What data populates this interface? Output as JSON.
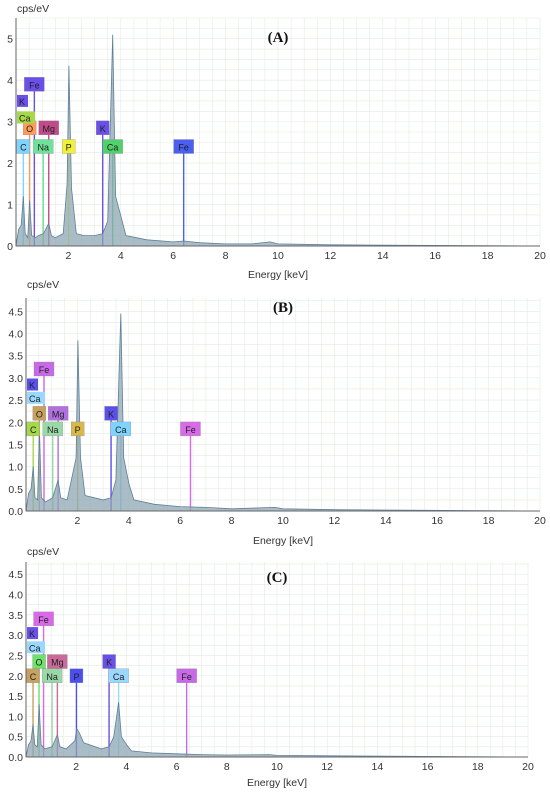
{
  "chart_data": [
    {
      "type": "area",
      "panel_label": "(A)",
      "ylabel": "cps/eV",
      "xlabel": "Energy [keV]",
      "xlim": [
        0,
        20
      ],
      "ylim": [
        0,
        5.5
      ],
      "x_ticks": [
        2,
        4,
        6,
        8,
        10,
        12,
        14,
        16,
        18,
        20
      ],
      "y_ticks": [
        0,
        1,
        2,
        3,
        4,
        5
      ],
      "grid": true,
      "spectrum": [
        [
          0,
          0
        ],
        [
          0.1,
          0.4
        ],
        [
          0.2,
          0.5
        ],
        [
          0.28,
          1.2
        ],
        [
          0.35,
          0.3
        ],
        [
          0.45,
          0.2
        ],
        [
          0.52,
          1.1
        ],
        [
          0.6,
          0.25
        ],
        [
          0.75,
          0.2
        ],
        [
          0.85,
          0.25
        ],
        [
          1.05,
          0.3
        ],
        [
          1.25,
          0.55
        ],
        [
          1.35,
          0.25
        ],
        [
          1.5,
          0.2
        ],
        [
          1.8,
          0.3
        ],
        [
          1.95,
          1.5
        ],
        [
          2.02,
          4.35
        ],
        [
          2.12,
          1.4
        ],
        [
          2.3,
          0.3
        ],
        [
          2.6,
          0.25
        ],
        [
          3.0,
          0.25
        ],
        [
          3.31,
          0.3
        ],
        [
          3.5,
          0.6
        ],
        [
          3.69,
          5.1
        ],
        [
          3.8,
          1.2
        ],
        [
          4.01,
          0.7
        ],
        [
          4.2,
          0.25
        ],
        [
          5,
          0.15
        ],
        [
          6,
          0.1
        ],
        [
          6.4,
          0.12
        ],
        [
          7,
          0.08
        ],
        [
          8,
          0.05
        ],
        [
          9,
          0.05
        ],
        [
          9.7,
          0.1
        ],
        [
          10,
          0.05
        ],
        [
          12,
          0.03
        ],
        [
          20,
          0
        ]
      ],
      "element_lines": [
        {
          "label": "C",
          "energy": 0.28,
          "height": 2.4,
          "color": "#7fd3ff"
        },
        {
          "label": "O",
          "energy": 0.52,
          "height": 2.85,
          "color": "#ff9a5a"
        },
        {
          "label": "Fe",
          "energy": 0.7,
          "height": 3.9,
          "color": "#6a4fe8"
        },
        {
          "label": "Na",
          "energy": 1.04,
          "height": 2.4,
          "color": "#6ee29a"
        },
        {
          "label": "Mg",
          "energy": 1.25,
          "height": 2.85,
          "color": "#c04a8a"
        },
        {
          "label": "P",
          "energy": 2.01,
          "height": 2.4,
          "color": "#f0f03a"
        },
        {
          "label": "K",
          "energy": 3.31,
          "height": 2.85,
          "color": "#6a4fe8"
        },
        {
          "label": "Ca",
          "energy": 3.69,
          "height": 2.4,
          "color": "#4fd26a"
        },
        {
          "label": "Fe",
          "energy": 6.4,
          "height": 2.4,
          "color": "#4a5ff0"
        }
      ],
      "side_labels": [
        {
          "label": "K",
          "y": 3.5,
          "color": "#6a4fe8"
        },
        {
          "label": "Ca",
          "y": 3.1,
          "color": "#a6d84a"
        }
      ]
    },
    {
      "type": "area",
      "panel_label": "(B)",
      "ylabel": "cps/eV",
      "xlabel": "Energy [keV]",
      "xlim": [
        0,
        20
      ],
      "ylim": [
        0,
        4.8
      ],
      "x_ticks": [
        2,
        4,
        6,
        8,
        10,
        12,
        14,
        16,
        18,
        20
      ],
      "y_ticks": [
        0.0,
        0.5,
        1.0,
        1.5,
        2.0,
        2.5,
        3.0,
        3.5,
        4.0,
        4.5
      ],
      "grid": true,
      "spectrum": [
        [
          0,
          0
        ],
        [
          0.1,
          0.4
        ],
        [
          0.2,
          0.5
        ],
        [
          0.28,
          1.0
        ],
        [
          0.35,
          0.3
        ],
        [
          0.45,
          0.25
        ],
        [
          0.52,
          1.85
        ],
        [
          0.6,
          0.3
        ],
        [
          0.75,
          0.2
        ],
        [
          1.04,
          0.3
        ],
        [
          1.25,
          0.7
        ],
        [
          1.35,
          0.3
        ],
        [
          1.6,
          0.25
        ],
        [
          1.95,
          1.2
        ],
        [
          2.02,
          3.85
        ],
        [
          2.12,
          1.2
        ],
        [
          2.3,
          0.35
        ],
        [
          3.0,
          0.25
        ],
        [
          3.31,
          0.3
        ],
        [
          3.5,
          0.7
        ],
        [
          3.69,
          4.45
        ],
        [
          3.8,
          1.2
        ],
        [
          4.01,
          0.6
        ],
        [
          4.2,
          0.25
        ],
        [
          5,
          0.15
        ],
        [
          6,
          0.1
        ],
        [
          7,
          0.08
        ],
        [
          8,
          0.05
        ],
        [
          9.7,
          0.08
        ],
        [
          10,
          0.05
        ],
        [
          12,
          0.03
        ],
        [
          20,
          0
        ]
      ],
      "element_lines": [
        {
          "label": "C",
          "energy": 0.28,
          "height": 1.85,
          "color": "#a6d84a"
        },
        {
          "label": "O",
          "energy": 0.52,
          "height": 2.2,
          "color": "#c8a060"
        },
        {
          "label": "Fe",
          "energy": 0.7,
          "height": 3.2,
          "color": "#c86ae8"
        },
        {
          "label": "Na",
          "energy": 1.04,
          "height": 1.85,
          "color": "#9ad8a8"
        },
        {
          "label": "Mg",
          "energy": 1.25,
          "height": 2.2,
          "color": "#b070e0"
        },
        {
          "label": "P",
          "energy": 2.01,
          "height": 1.85,
          "color": "#d8b84a"
        },
        {
          "label": "K",
          "energy": 3.31,
          "height": 2.2,
          "color": "#5a4fe8"
        },
        {
          "label": "Ca",
          "energy": 3.69,
          "height": 1.85,
          "color": "#7fd3ff"
        },
        {
          "label": "Fe",
          "energy": 6.4,
          "height": 1.85,
          "color": "#d86ae8"
        }
      ],
      "side_labels": [
        {
          "label": "K",
          "y": 2.85,
          "color": "#5a4fe8"
        },
        {
          "label": "Ca",
          "y": 2.55,
          "color": "#9ad8ff"
        }
      ]
    },
    {
      "type": "area",
      "panel_label": "(C)",
      "ylabel": "cps/eV",
      "xlabel": "Energy [keV]",
      "xlim": [
        0,
        20
      ],
      "ylim": [
        0,
        4.8
      ],
      "x_ticks": [
        2,
        4,
        6,
        8,
        10,
        12,
        14,
        16,
        18,
        20
      ],
      "y_ticks": [
        0.0,
        0.5,
        1.0,
        1.5,
        2.0,
        2.5,
        3.0,
        3.5,
        4.0,
        4.5
      ],
      "grid": true,
      "spectrum": [
        [
          0,
          0
        ],
        [
          0.1,
          0.3
        ],
        [
          0.2,
          0.4
        ],
        [
          0.28,
          0.8
        ],
        [
          0.35,
          0.3
        ],
        [
          0.45,
          0.25
        ],
        [
          0.52,
          1.3
        ],
        [
          0.6,
          0.3
        ],
        [
          0.75,
          0.2
        ],
        [
          1.04,
          0.25
        ],
        [
          1.25,
          0.55
        ],
        [
          1.35,
          0.25
        ],
        [
          1.6,
          0.2
        ],
        [
          1.95,
          0.4
        ],
        [
          2.02,
          0.7
        ],
        [
          2.12,
          0.6
        ],
        [
          2.3,
          0.35
        ],
        [
          3.0,
          0.2
        ],
        [
          3.31,
          0.25
        ],
        [
          3.5,
          0.5
        ],
        [
          3.69,
          1.35
        ],
        [
          3.8,
          0.5
        ],
        [
          4.01,
          0.3
        ],
        [
          4.2,
          0.15
        ],
        [
          5,
          0.1
        ],
        [
          6,
          0.08
        ],
        [
          7,
          0.06
        ],
        [
          8,
          0.05
        ],
        [
          9.7,
          0.06
        ],
        [
          10,
          0.04
        ],
        [
          12,
          0.03
        ],
        [
          20,
          0
        ]
      ],
      "element_lines": [
        {
          "label": "C",
          "energy": 0.28,
          "height": 2.0,
          "color": "#c8a060"
        },
        {
          "label": "O",
          "energy": 0.52,
          "height": 2.35,
          "color": "#6ee26a"
        },
        {
          "label": "Fe",
          "energy": 0.7,
          "height": 3.4,
          "color": "#d86ae8"
        },
        {
          "label": "Na",
          "energy": 1.04,
          "height": 2.0,
          "color": "#9ad8a8"
        },
        {
          "label": "Mg",
          "energy": 1.25,
          "height": 2.35,
          "color": "#c86a9a"
        },
        {
          "label": "P",
          "energy": 2.01,
          "height": 2.0,
          "color": "#4a4ff0"
        },
        {
          "label": "K",
          "energy": 3.31,
          "height": 2.35,
          "color": "#6a4fe8"
        },
        {
          "label": "Ca",
          "energy": 3.69,
          "height": 2.0,
          "color": "#9ad8ff"
        },
        {
          "label": "Fe",
          "energy": 6.4,
          "height": 2.0,
          "color": "#c86ae8"
        }
      ],
      "side_labels": [
        {
          "label": "K",
          "y": 3.05,
          "color": "#6a4fe8"
        },
        {
          "label": "Ca",
          "y": 2.7,
          "color": "#9ad8ff"
        }
      ]
    }
  ]
}
